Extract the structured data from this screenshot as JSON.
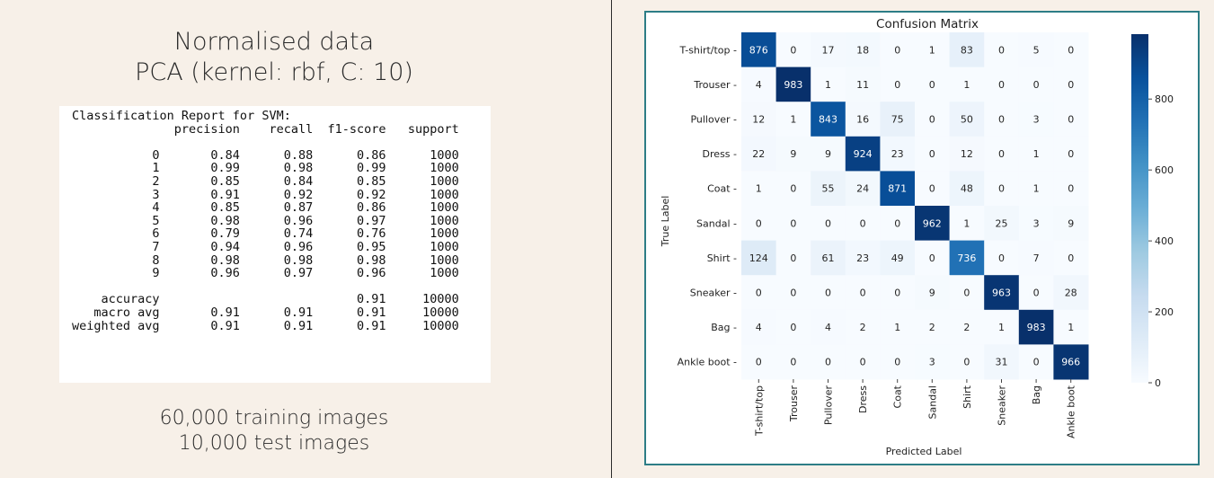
{
  "left": {
    "title_line1": "Normalised data",
    "title_line2": "PCA (kernel: rbf, C: 10)",
    "report_title": "Classification Report for SVM:",
    "report_columns": [
      "precision",
      "recall",
      "f1-score",
      "support"
    ],
    "report_rows": [
      {
        "label": "0",
        "values": [
          "0.84",
          "0.88",
          "0.86",
          "1000"
        ]
      },
      {
        "label": "1",
        "values": [
          "0.99",
          "0.98",
          "0.99",
          "1000"
        ]
      },
      {
        "label": "2",
        "values": [
          "0.85",
          "0.84",
          "0.85",
          "1000"
        ]
      },
      {
        "label": "3",
        "values": [
          "0.91",
          "0.92",
          "0.92",
          "1000"
        ]
      },
      {
        "label": "4",
        "values": [
          "0.85",
          "0.87",
          "0.86",
          "1000"
        ]
      },
      {
        "label": "5",
        "values": [
          "0.98",
          "0.96",
          "0.97",
          "1000"
        ]
      },
      {
        "label": "6",
        "values": [
          "0.79",
          "0.74",
          "0.76",
          "1000"
        ]
      },
      {
        "label": "7",
        "values": [
          "0.94",
          "0.96",
          "0.95",
          "1000"
        ]
      },
      {
        "label": "8",
        "values": [
          "0.98",
          "0.98",
          "0.98",
          "1000"
        ]
      },
      {
        "label": "9",
        "values": [
          "0.96",
          "0.97",
          "0.96",
          "1000"
        ]
      }
    ],
    "report_summary": [
      {
        "label": "accuracy",
        "values": [
          "",
          "",
          "0.91",
          "10000"
        ]
      },
      {
        "label": "macro avg",
        "values": [
          "0.91",
          "0.91",
          "0.91",
          "10000"
        ]
      },
      {
        "label": "weighted avg",
        "values": [
          "0.91",
          "0.91",
          "0.91",
          "10000"
        ]
      }
    ],
    "footer_line1": "60,000 training images",
    "footer_line2": "10,000 test images"
  },
  "chart_data": {
    "type": "heatmap",
    "title": "Confusion Matrix",
    "xlabel": "Predicted Label",
    "ylabel": "True Label",
    "labels": [
      "T-shirt/top",
      "Trouser",
      "Pullover",
      "Dress",
      "Coat",
      "Sandal",
      "Shirt",
      "Sneaker",
      "Bag",
      "Ankle boot"
    ],
    "matrix": [
      [
        876,
        0,
        17,
        18,
        0,
        1,
        83,
        0,
        5,
        0
      ],
      [
        4,
        983,
        1,
        11,
        0,
        0,
        1,
        0,
        0,
        0
      ],
      [
        12,
        1,
        843,
        16,
        75,
        0,
        50,
        0,
        3,
        0
      ],
      [
        22,
        9,
        9,
        924,
        23,
        0,
        12,
        0,
        1,
        0
      ],
      [
        1,
        0,
        55,
        24,
        871,
        0,
        48,
        0,
        1,
        0
      ],
      [
        0,
        0,
        0,
        0,
        0,
        962,
        1,
        25,
        3,
        9
      ],
      [
        124,
        0,
        61,
        23,
        49,
        0,
        736,
        0,
        7,
        0
      ],
      [
        0,
        0,
        0,
        0,
        0,
        9,
        0,
        963,
        0,
        28
      ],
      [
        4,
        0,
        4,
        2,
        1,
        2,
        2,
        1,
        983,
        1
      ],
      [
        0,
        0,
        0,
        0,
        0,
        3,
        0,
        31,
        0,
        966
      ]
    ],
    "colorbar": {
      "min": 0,
      "max": 983,
      "ticks": [
        0,
        200,
        400,
        600,
        800
      ]
    },
    "colors": {
      "low": "#f7fbff",
      "high": "#08306b",
      "light_text": "#ffffff",
      "dark_text": "#262626",
      "frame": "#2d7d86"
    }
  }
}
